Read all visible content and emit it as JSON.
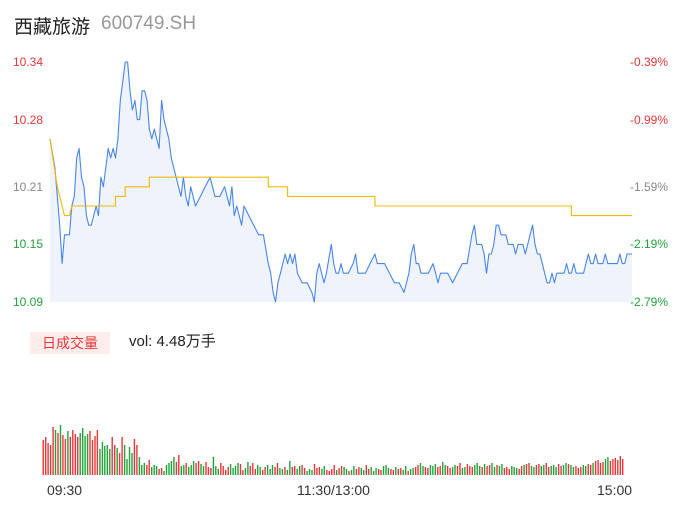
{
  "header": {
    "name": "西藏旅游",
    "code": "600749.SH"
  },
  "volume_panel": {
    "tag": "日成交量",
    "vol_label": "vol: 4.48万手"
  },
  "colors": {
    "up": "#e8373a",
    "down": "#22a33a",
    "price_line": "#4a86e8",
    "avg_line": "#f0b90b",
    "fill": "#eef3fc",
    "tag_bg": "#fdece9"
  },
  "chart_data": [
    {
      "type": "line",
      "title": "",
      "y_ticks": [
        "10.34",
        "10.28",
        "10.21",
        "10.15",
        "10.09"
      ],
      "y_tick_colors": [
        "#e8373a",
        "#e8373a",
        "#888888",
        "#22a33a",
        "#22a33a"
      ],
      "pct_ticks": [
        "-0.39%",
        "-0.99%",
        "-1.59%",
        "-2.19%",
        "-2.79%"
      ],
      "pct_tick_colors": [
        "#e8373a",
        "#e8373a",
        "#888888",
        "#22a33a",
        "#22a33a"
      ],
      "ylim": [
        10.09,
        10.34
      ],
      "x_ticks": [
        "09:30",
        "11:30/13:00",
        "15:00"
      ],
      "x_range_minutes": 240,
      "series": [
        {
          "role": "price",
          "points": [
            [
              0,
              10.26
            ],
            [
              2,
              10.23
            ],
            [
              4,
              10.17
            ],
            [
              5,
              10.13
            ],
            [
              6,
              10.16
            ],
            [
              8,
              10.16
            ],
            [
              9,
              10.19
            ],
            [
              10,
              10.2
            ],
            [
              11,
              10.24
            ],
            [
              12,
              10.25
            ],
            [
              13,
              10.22
            ],
            [
              14,
              10.21
            ],
            [
              15,
              10.18
            ],
            [
              16,
              10.17
            ],
            [
              17,
              10.17
            ],
            [
              18,
              10.18
            ],
            [
              19,
              10.19
            ],
            [
              20,
              10.18
            ],
            [
              21,
              10.22
            ],
            [
              22,
              10.21
            ],
            [
              23,
              10.23
            ],
            [
              24,
              10.25
            ],
            [
              25,
              10.24
            ],
            [
              26,
              10.25
            ],
            [
              27,
              10.24
            ],
            [
              28,
              10.26
            ],
            [
              29,
              10.3
            ],
            [
              30,
              10.32
            ],
            [
              31,
              10.34
            ],
            [
              32,
              10.34
            ],
            [
              33,
              10.31
            ],
            [
              34,
              10.29
            ],
            [
              35,
              10.3
            ],
            [
              36,
              10.28
            ],
            [
              37,
              10.28
            ],
            [
              38,
              10.31
            ],
            [
              39,
              10.31
            ],
            [
              40,
              10.3
            ],
            [
              41,
              10.27
            ],
            [
              42,
              10.26
            ],
            [
              43,
              10.27
            ],
            [
              44,
              10.26
            ],
            [
              45,
              10.25
            ],
            [
              46,
              10.3
            ],
            [
              47,
              10.28
            ],
            [
              48,
              10.27
            ],
            [
              49,
              10.26
            ],
            [
              50,
              10.24
            ],
            [
              51,
              10.23
            ],
            [
              52,
              10.22
            ],
            [
              53,
              10.21
            ],
            [
              54,
              10.2
            ],
            [
              55,
              10.22
            ],
            [
              56,
              10.2
            ],
            [
              57,
              10.19
            ],
            [
              58,
              10.21
            ],
            [
              59,
              10.2
            ],
            [
              60,
              10.19
            ],
            [
              62,
              10.2
            ],
            [
              64,
              10.21
            ],
            [
              66,
              10.22
            ],
            [
              68,
              10.2
            ],
            [
              70,
              10.2
            ],
            [
              72,
              10.21
            ],
            [
              74,
              10.19
            ],
            [
              75,
              10.21
            ],
            [
              76,
              10.18
            ],
            [
              77,
              10.19
            ],
            [
              78,
              10.18
            ],
            [
              79,
              10.17
            ],
            [
              80,
              10.19
            ],
            [
              82,
              10.18
            ],
            [
              84,
              10.17
            ],
            [
              86,
              10.16
            ],
            [
              88,
              10.16
            ],
            [
              90,
              10.13
            ],
            [
              91,
              10.12
            ],
            [
              92,
              10.1
            ],
            [
              93,
              10.09
            ],
            [
              94,
              10.11
            ],
            [
              95,
              10.12
            ],
            [
              96,
              10.13
            ],
            [
              97,
              10.14
            ],
            [
              98,
              10.13
            ],
            [
              99,
              10.14
            ],
            [
              100,
              10.13
            ],
            [
              101,
              10.14
            ],
            [
              102,
              10.12
            ],
            [
              104,
              10.11
            ],
            [
              106,
              10.11
            ],
            [
              108,
              10.1
            ],
            [
              109,
              10.09
            ],
            [
              110,
              10.12
            ],
            [
              111,
              10.13
            ],
            [
              112,
              10.12
            ],
            [
              113,
              10.11
            ],
            [
              114,
              10.12
            ],
            [
              116,
              10.15
            ],
            [
              117,
              10.13
            ],
            [
              118,
              10.12
            ],
            [
              119,
              10.12
            ],
            [
              120,
              10.13
            ],
            [
              121,
              10.12
            ],
            [
              123,
              10.12
            ],
            [
              125,
              10.13
            ],
            [
              126,
              10.14
            ],
            [
              127,
              10.12
            ],
            [
              128,
              10.12
            ],
            [
              130,
              10.12
            ],
            [
              132,
              10.13
            ],
            [
              134,
              10.14
            ],
            [
              135,
              10.13
            ],
            [
              137,
              10.13
            ],
            [
              138,
              10.13
            ],
            [
              140,
              10.12
            ],
            [
              142,
              10.11
            ],
            [
              144,
              10.11
            ],
            [
              146,
              10.1
            ],
            [
              148,
              10.12
            ],
            [
              149,
              10.14
            ],
            [
              150,
              10.15
            ],
            [
              151,
              10.13
            ],
            [
              152,
              10.13
            ],
            [
              153,
              10.12
            ],
            [
              154,
              10.12
            ],
            [
              156,
              10.12
            ],
            [
              158,
              10.13
            ],
            [
              159,
              10.12
            ],
            [
              160,
              10.11
            ],
            [
              161,
              10.12
            ],
            [
              162,
              10.12
            ],
            [
              164,
              10.12
            ],
            [
              166,
              10.11
            ],
            [
              168,
              10.12
            ],
            [
              170,
              10.13
            ],
            [
              172,
              10.13
            ],
            [
              174,
              10.16
            ],
            [
              175,
              10.17
            ],
            [
              176,
              10.15
            ],
            [
              177,
              10.15
            ],
            [
              178,
              10.15
            ],
            [
              179,
              10.14
            ],
            [
              180,
              10.12
            ],
            [
              181,
              10.14
            ],
            [
              182,
              10.14
            ],
            [
              183,
              10.15
            ],
            [
              184,
              10.17
            ],
            [
              185,
              10.17
            ],
            [
              186,
              10.16
            ],
            [
              187,
              10.16
            ],
            [
              188,
              10.16
            ],
            [
              189,
              10.15
            ],
            [
              190,
              10.15
            ],
            [
              191,
              10.15
            ],
            [
              192,
              10.14
            ],
            [
              193,
              10.15
            ],
            [
              194,
              10.15
            ],
            [
              195,
              10.15
            ],
            [
              196,
              10.14
            ],
            [
              197,
              10.15
            ],
            [
              198,
              10.16
            ],
            [
              199,
              10.17
            ],
            [
              200,
              10.15
            ],
            [
              201,
              10.14
            ],
            [
              202,
              10.14
            ],
            [
              203,
              10.13
            ],
            [
              204,
              10.12
            ],
            [
              205,
              10.11
            ],
            [
              206,
              10.11
            ],
            [
              207,
              10.12
            ],
            [
              208,
              10.11
            ],
            [
              209,
              10.12
            ],
            [
              210,
              10.12
            ],
            [
              211,
              10.12
            ],
            [
              212,
              10.12
            ],
            [
              213,
              10.13
            ],
            [
              214,
              10.12
            ],
            [
              215,
              10.12
            ],
            [
              216,
              10.13
            ],
            [
              217,
              10.12
            ],
            [
              218,
              10.12
            ],
            [
              219,
              10.12
            ],
            [
              220,
              10.12
            ],
            [
              221,
              10.13
            ],
            [
              222,
              10.14
            ],
            [
              223,
              10.13
            ],
            [
              224,
              10.13
            ],
            [
              225,
              10.14
            ],
            [
              226,
              10.13
            ],
            [
              227,
              10.13
            ],
            [
              228,
              10.13
            ],
            [
              229,
              10.14
            ],
            [
              230,
              10.13
            ],
            [
              231,
              10.13
            ],
            [
              232,
              10.13
            ],
            [
              233,
              10.13
            ],
            [
              234,
              10.13
            ],
            [
              235,
              10.14
            ],
            [
              236,
              10.13
            ],
            [
              237,
              10.13
            ],
            [
              238,
              10.14
            ],
            [
              239,
              10.14
            ],
            [
              240,
              10.14
            ]
          ]
        },
        {
          "role": "average",
          "points": [
            [
              0,
              10.26
            ],
            [
              3,
              10.21
            ],
            [
              5,
              10.19
            ],
            [
              6,
              10.18
            ],
            [
              8,
              10.18
            ],
            [
              9,
              10.19
            ],
            [
              27,
              10.19
            ],
            [
              27,
              10.2
            ],
            [
              31,
              10.2
            ],
            [
              31,
              10.21
            ],
            [
              41,
              10.21
            ],
            [
              41,
              10.22
            ],
            [
              90,
              10.22
            ],
            [
              90,
              10.21
            ],
            [
              98,
              10.21
            ],
            [
              98,
              10.2
            ],
            [
              134,
              10.2
            ],
            [
              134,
              10.19
            ],
            [
              215,
              10.19
            ],
            [
              215,
              10.18
            ],
            [
              240,
              10.18
            ]
          ]
        }
      ]
    },
    {
      "type": "bar",
      "title": "",
      "role": "volume",
      "ylim": [
        0,
        105
      ],
      "volumes": [
        35,
        38,
        32,
        30,
        48,
        45,
        42,
        50,
        40,
        36,
        44,
        38,
        45,
        41,
        38,
        42,
        47,
        39,
        41,
        44,
        35,
        39,
        45,
        26,
        33,
        29,
        30,
        26,
        38,
        30,
        27,
        22,
        38,
        30,
        16,
        28,
        22,
        36,
        30,
        18,
        10,
        12,
        10,
        15,
        8,
        10,
        9,
        6,
        7,
        4,
        10,
        12,
        14,
        18,
        13,
        20,
        9,
        10,
        12,
        8,
        10,
        14,
        12,
        14,
        11,
        9,
        13,
        8,
        7,
        18,
        9,
        6,
        12,
        9,
        5,
        8,
        11,
        7,
        9,
        12,
        11,
        5,
        7,
        13,
        9,
        12,
        6,
        10,
        8,
        5,
        8,
        10,
        6,
        10,
        8,
        12,
        7,
        6,
        8,
        5,
        14,
        8,
        9,
        6,
        9,
        10,
        7,
        4,
        6,
        5,
        11,
        7,
        8,
        6,
        9,
        5,
        4,
        6,
        10,
        5,
        7,
        9,
        8,
        6,
        4,
        5,
        9,
        6,
        8,
        7,
        5,
        10,
        6,
        8,
        4,
        7,
        6,
        5,
        9,
        10,
        7,
        6,
        5,
        8,
        6,
        7,
        5,
        9,
        4,
        6,
        7,
        8,
        10,
        12,
        9,
        8,
        7,
        10,
        9,
        11,
        8,
        9,
        13,
        10,
        9,
        7,
        8,
        10,
        9,
        12,
        7,
        8,
        11,
        9,
        8,
        10,
        12,
        9,
        8,
        11,
        9,
        10,
        12,
        8,
        10,
        9,
        11,
        7,
        8,
        6,
        9,
        8,
        7,
        6,
        9,
        10,
        11,
        12,
        9,
        8,
        10,
        11,
        9,
        10,
        12,
        8,
        9,
        10,
        8,
        11,
        9,
        10,
        12,
        11,
        10,
        8,
        9,
        7,
        8,
        10,
        9,
        11,
        10,
        12,
        14,
        15,
        12,
        13,
        16,
        18,
        14,
        16,
        17,
        15,
        19,
        16
      ],
      "directions": "uuuuududuuduuuudddduuuuddddduuduudddduuddduuddduuddddduudduddduudduuuddduuuudddduudduuudduuddduuddudduudduuddduuudduuuuduuddudduudduuddduuddduuduuddudduudduuddduudduudduudduuuddduduuddudduuuddduuduudduudduuddduuddudduuudduuduuuudduuuuuuuuu"
    }
  ]
}
